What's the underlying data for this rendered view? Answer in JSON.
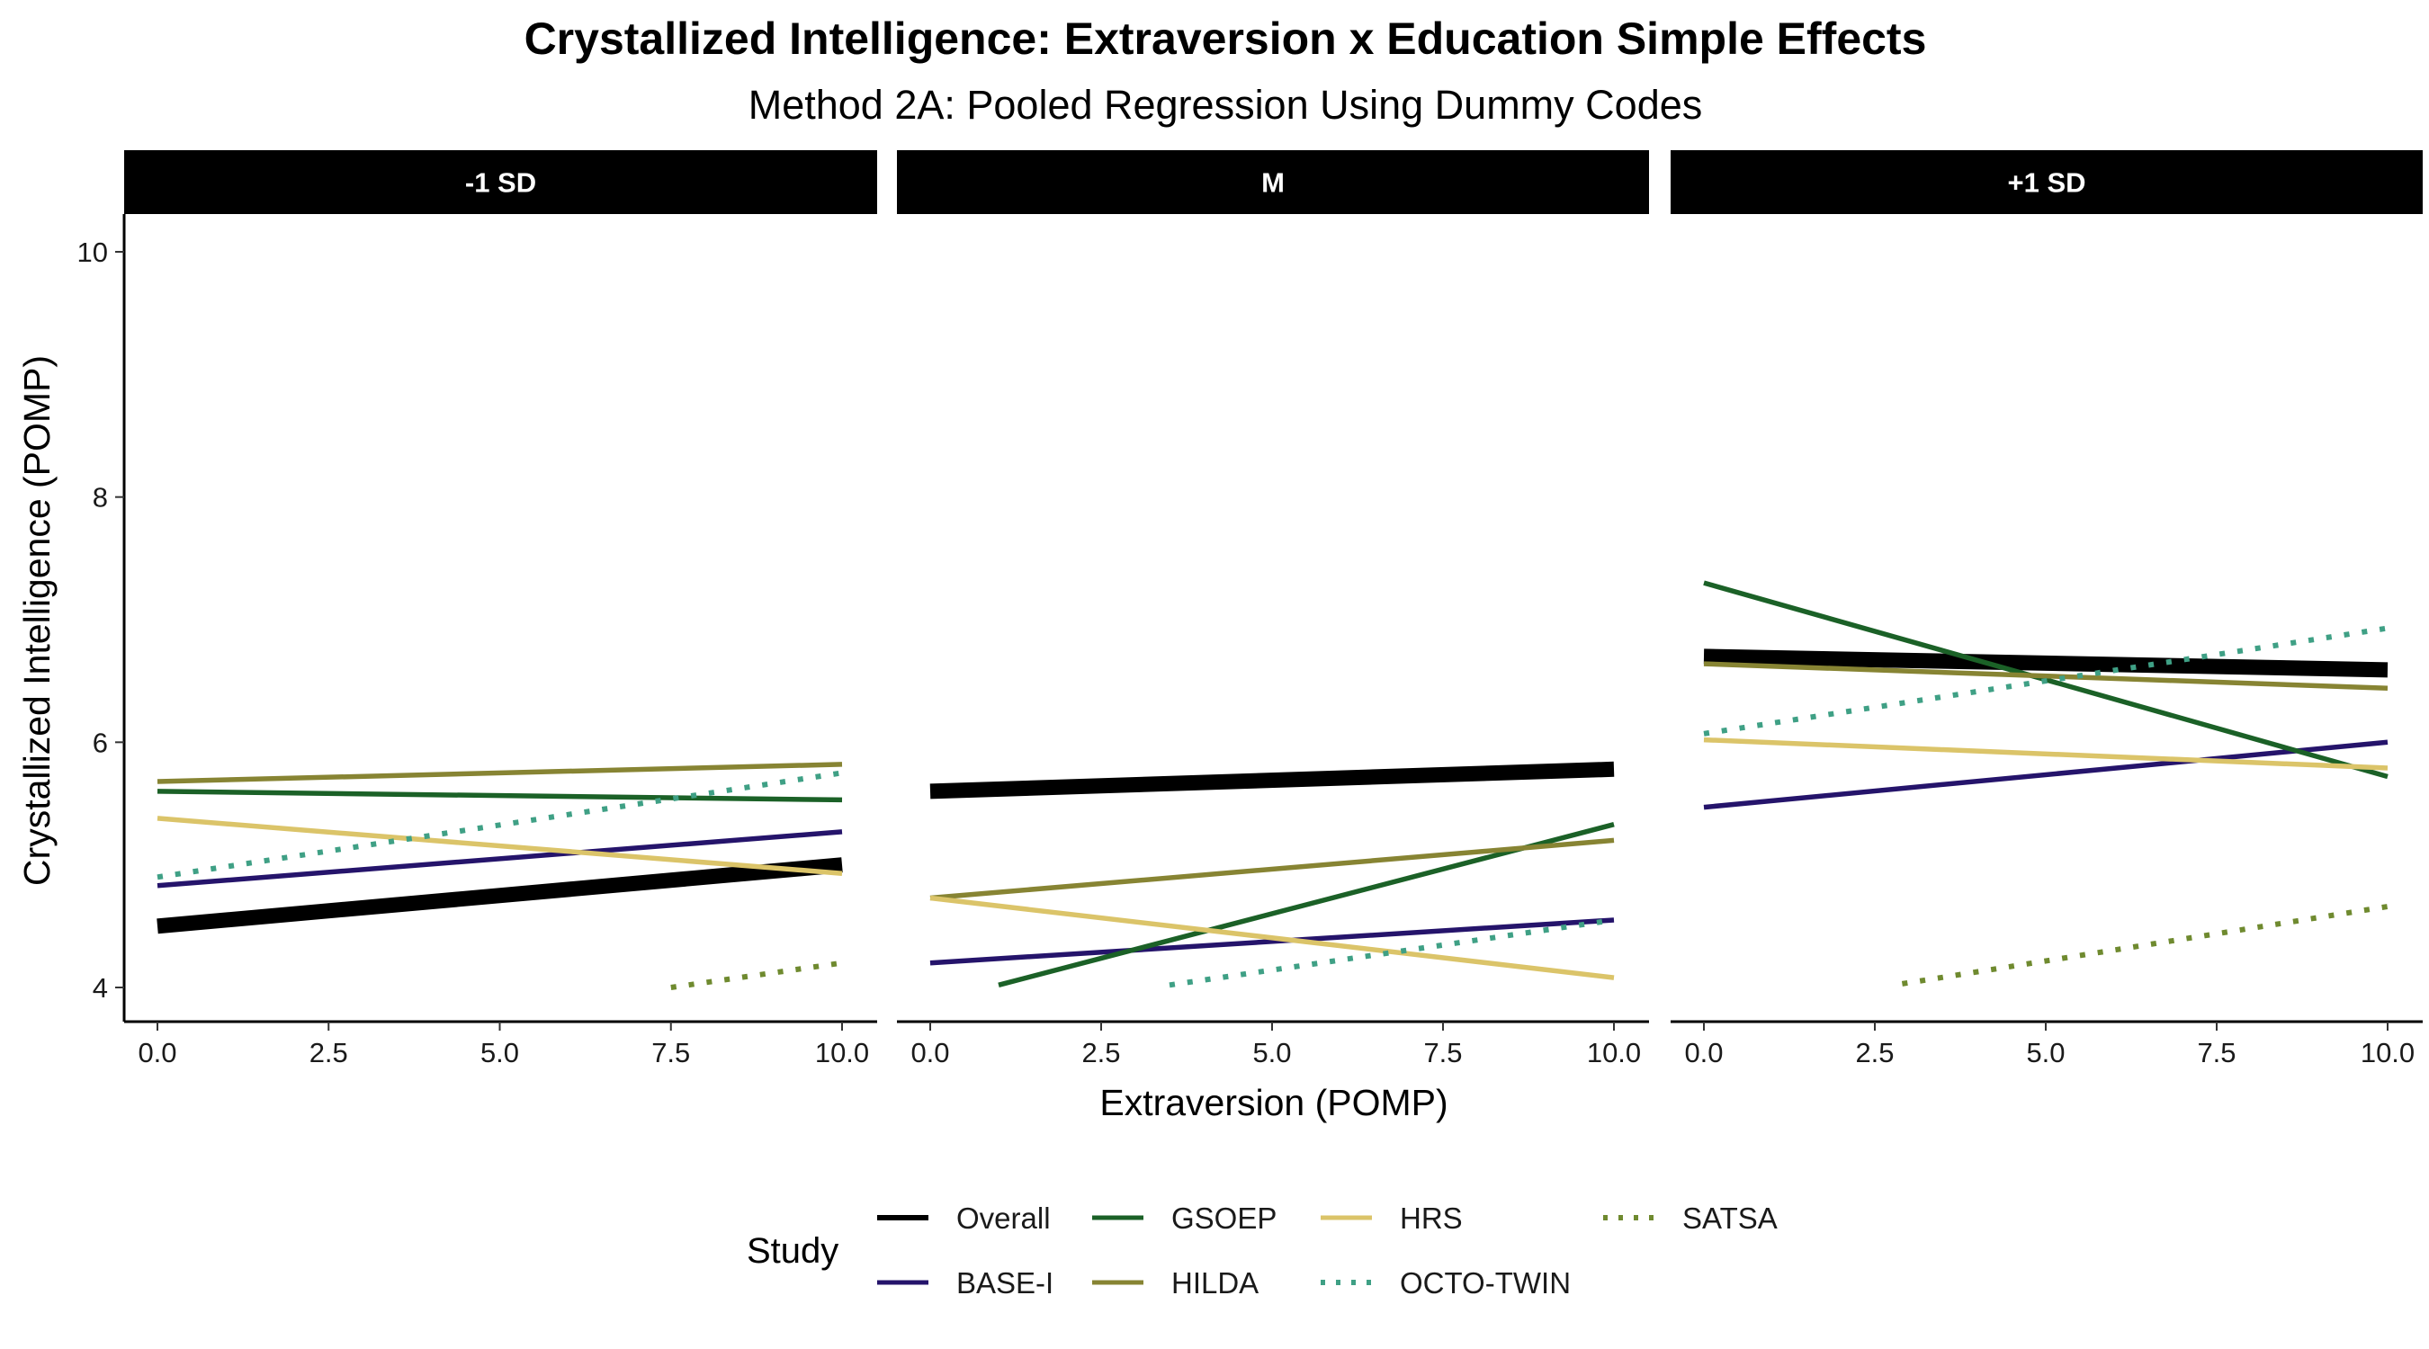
{
  "title": "Crystallized Intelligence: Extraversion x Education Simple Effects",
  "subtitle": "Method 2A: Pooled Regression Using Dummy Codes",
  "chart_data": {
    "type": "line",
    "title": "Crystallized Intelligence: Extraversion x Education Simple Effects",
    "subtitle": "Method 2A: Pooled Regression Using Dummy Codes",
    "xlabel": "Extraversion (POMP)",
    "ylabel": "Crystallized Intelligence (POMP)",
    "xlim": [
      0,
      10
    ],
    "ylim": [
      4,
      10
    ],
    "x_ticks": [
      "0.0",
      "2.5",
      "5.0",
      "7.5",
      "10.0"
    ],
    "y_ticks": [
      "4",
      "6",
      "8",
      "10"
    ],
    "grid": false,
    "legend": {
      "title": "Study",
      "position": "bottom",
      "entries": [
        {
          "name": "Overall",
          "color": "#000000",
          "dash": "solid"
        },
        {
          "name": "BASE-I",
          "color": "#25146b",
          "dash": "solid"
        },
        {
          "name": "GSOEP",
          "color": "#1b6127",
          "dash": "solid"
        },
        {
          "name": "HILDA",
          "color": "#878433",
          "dash": "solid"
        },
        {
          "name": "HRS",
          "color": "#dbc469",
          "dash": "solid"
        },
        {
          "name": "OCTO-TWIN",
          "color": "#3fa085",
          "dash": "dotted"
        },
        {
          "name": "SATSA",
          "color": "#6f8a2f",
          "dash": "dotted"
        }
      ]
    },
    "panels": [
      {
        "label": "-1 SD",
        "series": [
          {
            "name": "Overall",
            "x": [
              0,
              10
            ],
            "y": [
              4.5,
              5.0
            ]
          },
          {
            "name": "BASE-I",
            "x": [
              0,
              10
            ],
            "y": [
              4.83,
              5.27
            ]
          },
          {
            "name": "GSOEP",
            "x": [
              0,
              10
            ],
            "y": [
              5.6,
              5.53
            ]
          },
          {
            "name": "HILDA",
            "x": [
              0,
              10
            ],
            "y": [
              5.68,
              5.82
            ]
          },
          {
            "name": "HRS",
            "x": [
              0,
              10
            ],
            "y": [
              5.38,
              4.93
            ]
          },
          {
            "name": "OCTO-TWIN",
            "x": [
              0,
              10
            ],
            "y": [
              4.9,
              5.75
            ]
          },
          {
            "name": "SATSA",
            "x": [
              7.5,
              10
            ],
            "y": [
              4.0,
              4.2
            ]
          }
        ]
      },
      {
        "label": "M",
        "series": [
          {
            "name": "Overall",
            "x": [
              0,
              10
            ],
            "y": [
              5.6,
              5.78
            ]
          },
          {
            "name": "BASE-I",
            "x": [
              0,
              10
            ],
            "y": [
              4.2,
              4.55
            ]
          },
          {
            "name": "GSOEP",
            "x": [
              1.0,
              10
            ],
            "y": [
              4.02,
              5.33
            ]
          },
          {
            "name": "HILDA",
            "x": [
              0,
              10
            ],
            "y": [
              4.73,
              5.2
            ]
          },
          {
            "name": "HRS",
            "x": [
              0,
              10
            ],
            "y": [
              4.73,
              4.08
            ]
          },
          {
            "name": "OCTO-TWIN",
            "x": [
              3.5,
              10
            ],
            "y": [
              4.02,
              4.55
            ]
          },
          {
            "name": "SATSA",
            "x": [],
            "y": []
          }
        ]
      },
      {
        "label": "+1 SD",
        "series": [
          {
            "name": "Overall",
            "x": [
              0,
              10
            ],
            "y": [
              6.7,
              6.59
            ]
          },
          {
            "name": "BASE-I",
            "x": [
              0,
              10
            ],
            "y": [
              5.47,
              6.0
            ]
          },
          {
            "name": "GSOEP",
            "x": [
              0,
              10
            ],
            "y": [
              7.3,
              5.72
            ]
          },
          {
            "name": "HILDA",
            "x": [
              0,
              10
            ],
            "y": [
              6.64,
              6.44
            ]
          },
          {
            "name": "HRS",
            "x": [
              0,
              10
            ],
            "y": [
              6.02,
              5.79
            ]
          },
          {
            "name": "OCTO-TWIN",
            "x": [
              0,
              10
            ],
            "y": [
              6.07,
              6.93
            ]
          },
          {
            "name": "SATSA",
            "x": [
              2.9,
              10
            ],
            "y": [
              4.03,
              4.66
            ]
          }
        ]
      }
    ]
  }
}
